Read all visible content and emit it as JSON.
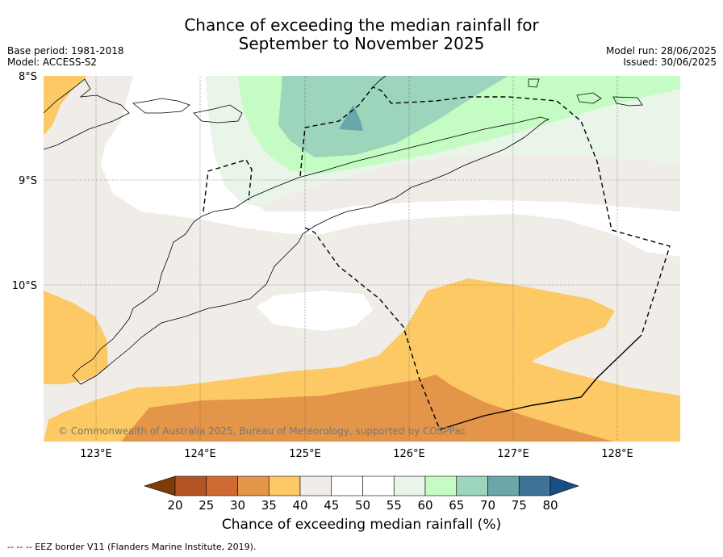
{
  "title_line1": "Chance of exceeding the median rainfall for",
  "title_line2": "September to November 2025",
  "meta_left": {
    "base_period": "Base period: 1981-2018",
    "model": "Model: ACCESS-S2"
  },
  "meta_right": {
    "model_run": "Model run: 28/06/2025",
    "issued": "Issued: 30/06/2025"
  },
  "map": {
    "lat_labels": [
      "8°S",
      "9°S",
      "10°S"
    ],
    "lon_labels": [
      "123°E",
      "124°E",
      "125°E",
      "126°E",
      "127°E",
      "128°E"
    ],
    "copyright": "© Commonwealth of Australia 2025, Bureau of Meteorology, supported by COSPPac"
  },
  "colorbar": {
    "label": "Chance of exceeding median rainfall (%)",
    "ticks": [
      "20",
      "25",
      "30",
      "35",
      "40",
      "45",
      "50",
      "55",
      "60",
      "65",
      "70",
      "75",
      "80"
    ],
    "colors": [
      "#7f3b08",
      "#b35424",
      "#d06a34",
      "#e3954a",
      "#fdc964",
      "#f0ede8",
      "#ffffff",
      "#ffffff",
      "#e8f5e8",
      "#c4fcc4",
      "#9cd4bc",
      "#6aa6aa",
      "#3d7496",
      "#1a4e86"
    ]
  },
  "footer": "--  --  -- EEZ border V11 (Flanders Marine Institute, 2019)."
}
